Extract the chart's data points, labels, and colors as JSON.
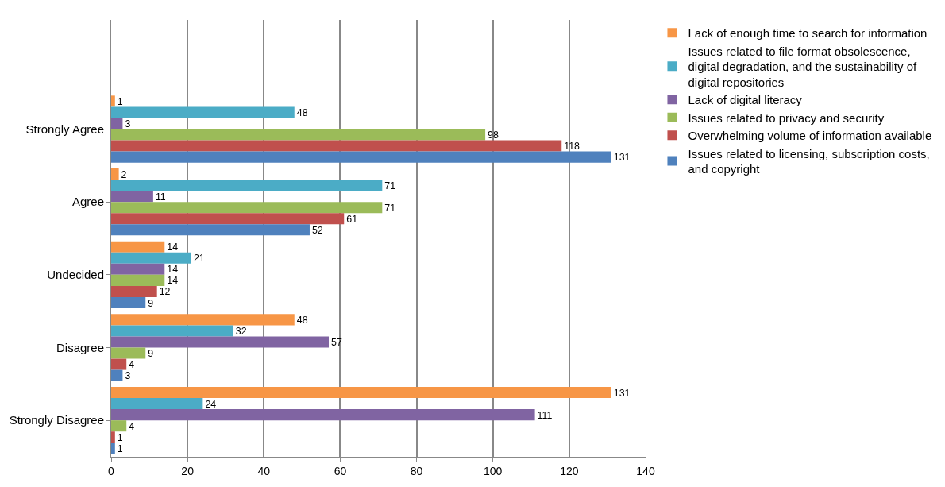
{
  "chart_data": {
    "type": "bar",
    "orientation": "horizontal",
    "categories": [
      "Strongly Agree",
      "Agree",
      "Undecided",
      "Disagree",
      "Strongly Disagree"
    ],
    "series": [
      {
        "name": "Issues related to licensing, subscription costs, and copyright",
        "color": "#4f81bd",
        "values": [
          131,
          52,
          9,
          3,
          1
        ]
      },
      {
        "name": "Overwhelming volume of information available",
        "color": "#c0504d",
        "values": [
          118,
          61,
          12,
          4,
          1
        ]
      },
      {
        "name": "Issues related to privacy and security",
        "color": "#9bbb59",
        "values": [
          98,
          71,
          14,
          9,
          4
        ]
      },
      {
        "name": "Lack of digital literacy",
        "color": "#8064a2",
        "values": [
          3,
          11,
          14,
          57,
          111
        ]
      },
      {
        "name": "Issues related to file format obsolescence, digital degradation, and the sustainability of digital repositories",
        "color": "#4bacc6",
        "values": [
          48,
          71,
          21,
          32,
          24
        ]
      },
      {
        "name": "Lack of enough time to search for information",
        "color": "#f79646",
        "values": [
          1,
          2,
          14,
          48,
          131
        ]
      }
    ],
    "xlim": [
      0,
      140
    ],
    "xticks": [
      0,
      20,
      40,
      60,
      80,
      100,
      120,
      140
    ],
    "grid": "x",
    "legend": "right",
    "data_labels": true
  }
}
